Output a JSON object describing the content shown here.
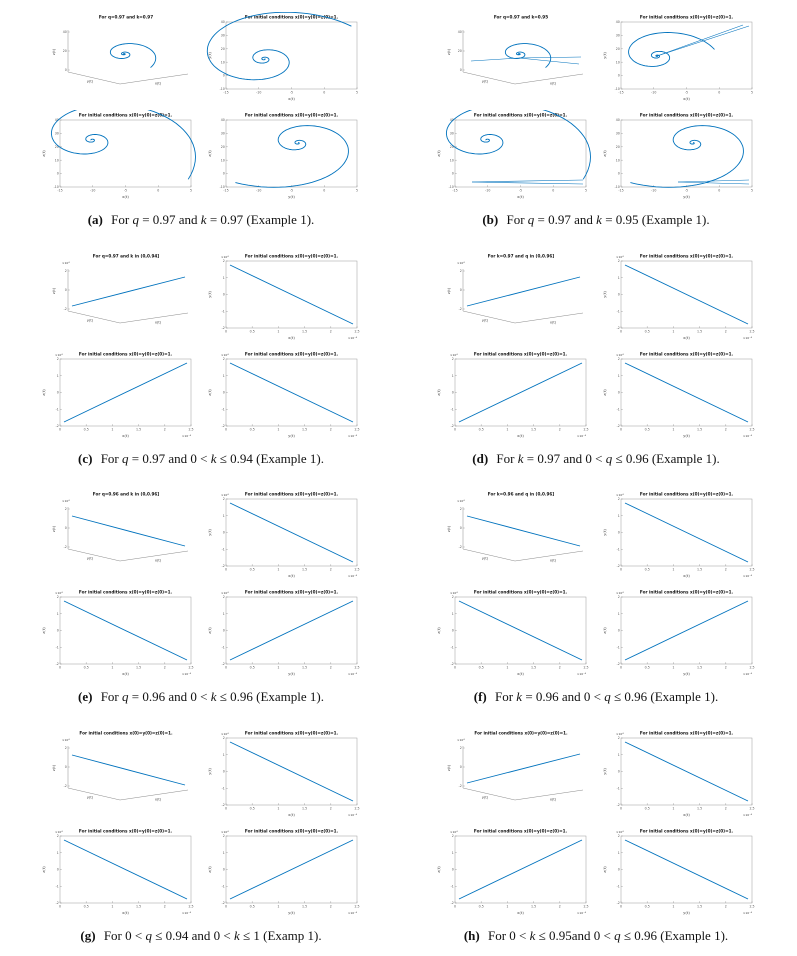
{
  "document": {
    "type": "journal-figure-page",
    "background": "#ffffff"
  },
  "colors": {
    "curve": "#0072BD",
    "axis": "#8a8a8a",
    "box": "#9a9a9a",
    "tick_text": "#555555",
    "label_text": "#444444",
    "title_text": "#111111",
    "caption_text": "#111111"
  },
  "ticks": {
    "spiral_x": [
      "-15",
      "-10",
      "-5",
      "0",
      "5"
    ],
    "spiral_y": [
      "-10",
      "0",
      "10",
      "20",
      "30",
      "40"
    ],
    "line_x": [
      "0",
      "0.5",
      "1",
      "1.5",
      "2",
      "2.5"
    ],
    "line_y": [
      "-2",
      "-1",
      "0",
      "1",
      "2"
    ],
    "spiral3d_z": [
      "0",
      "20",
      "40"
    ],
    "line3d_z": [
      "-2",
      "0",
      "2"
    ]
  },
  "exponents": {
    "x": "×10⁻⁴",
    "y": "×10⁴",
    "z": "×10⁴"
  },
  "figures": [
    {
      "label": "(a)",
      "caption": "For q = 0.97 and k = 0.97 (Example 1).",
      "panels": [
        {
          "title": "For q=0.97 and k=0.97",
          "type": "spiral3d",
          "xlabel": "x(t)",
          "ylabel": "y(t)",
          "zlabel": "z(t)"
        },
        {
          "title": "For initial conditions x(0)=y(0)=z(0)=1.",
          "type": "spiral",
          "tail": "ne",
          "xlabel": "x(t)",
          "ylabel": "y(t)"
        },
        {
          "title": "For initial conditions x(0)=y(0)=z(0)=1.",
          "type": "spiral",
          "tail": "se",
          "xlabel": "x(t)",
          "ylabel": "z(t)"
        },
        {
          "title": "For initial conditions x(0)=y(0)=z(0)=1.",
          "type": "spiral",
          "tail": "sw",
          "xlabel": "y(t)",
          "ylabel": "z(t)"
        }
      ]
    },
    {
      "label": "(b)",
      "caption": "For q = 0.97 and k = 0.95 (Example 1).",
      "panels": [
        {
          "title": "For q=0.97 and k=0.95",
          "type": "spiral3d",
          "whisker": "cross",
          "xlabel": "x(t)",
          "ylabel": "y(t)",
          "zlabel": "z(t)"
        },
        {
          "title": "For initial conditions x(0)=y(0)=z(0)=1.",
          "type": "spiral",
          "tail": "e",
          "whisker": "ne",
          "xlabel": "x(t)",
          "ylabel": "y(t)"
        },
        {
          "title": "For initial conditions x(0)=y(0)=z(0)=1.",
          "type": "spiral",
          "tail": "se",
          "whisker": "flat",
          "xlabel": "x(t)",
          "ylabel": "z(t)"
        },
        {
          "title": "For initial conditions x(0)=y(0)=z(0)=1.",
          "type": "spiral",
          "tail": "sw",
          "whisker": "flat",
          "xlabel": "y(t)",
          "ylabel": "z(t)"
        }
      ]
    },
    {
      "label": "(c)",
      "caption": "For q = 0.97 and 0 < k ≤ 0.94 (Example 1).",
      "panels": [
        {
          "title": "For q=0.97 and k in (0,0.94]",
          "type": "line3d",
          "dir": "up",
          "xlabel": "x(t)",
          "ylabel": "y(t)",
          "zlabel": "z(t)"
        },
        {
          "title": "For initial conditions x(0)=y(0)=z(0)=1.",
          "type": "line",
          "dir": "down",
          "xlabel": "x(t)",
          "ylabel": "y(t)"
        },
        {
          "title": "For initial conditions x(0)=y(0)=z(0)=1.",
          "type": "line",
          "dir": "up",
          "xlabel": "x(t)",
          "ylabel": "z(t)"
        },
        {
          "title": "For initial conditions x(0)=y(0)=z(0)=1.",
          "type": "line",
          "dir": "down",
          "xlabel": "y(t)",
          "ylabel": "z(t)"
        }
      ]
    },
    {
      "label": "(d)",
      "caption": "For k = 0.97 and 0 < q ≤ 0.96 (Example 1).",
      "panels": [
        {
          "title": "For k=0.97 and q in (0,0.96]",
          "type": "line3d",
          "dir": "up",
          "xlabel": "x(t)",
          "ylabel": "y(t)",
          "zlabel": "z(t)"
        },
        {
          "title": "For initial conditions x(0)=y(0)=z(0)=1.",
          "type": "line",
          "dir": "down",
          "xlabel": "x(t)",
          "ylabel": "y(t)"
        },
        {
          "title": "For initial conditions x(0)=y(0)=z(0)=1.",
          "type": "line",
          "dir": "up",
          "xlabel": "x(t)",
          "ylabel": "z(t)"
        },
        {
          "title": "For initial conditions x(0)=y(0)=z(0)=1.",
          "type": "line",
          "dir": "down",
          "xlabel": "y(t)",
          "ylabel": "z(t)"
        }
      ]
    },
    {
      "label": "(e)",
      "caption": "For q = 0.96 and 0 < k ≤ 0.96 (Example 1).",
      "panels": [
        {
          "title": "For q=0.96 and k in (0,0.96]",
          "type": "line3d",
          "dir": "down",
          "xlabel": "x(t)",
          "ylabel": "y(t)",
          "zlabel": "z(t)"
        },
        {
          "title": "For initial conditions x(0)=y(0)=z(0)=1.",
          "type": "line",
          "dir": "down",
          "xlabel": "x(t)",
          "ylabel": "y(t)"
        },
        {
          "title": "For initial conditions x(0)=y(0)=z(0)=1.",
          "type": "line",
          "dir": "down",
          "xlabel": "x(t)",
          "ylabel": "z(t)"
        },
        {
          "title": "For initial conditions x(0)=y(0)=z(0)=1.",
          "type": "line",
          "dir": "up",
          "xlabel": "y(t)",
          "ylabel": "z(t)"
        }
      ]
    },
    {
      "label": "(f)",
      "caption": "For k = 0.96 and 0 < q ≤ 0.96 (Example 1).",
      "panels": [
        {
          "title": "For k=0.96 and q in (0,0.96]",
          "type": "line3d",
          "dir": "down",
          "xlabel": "x(t)",
          "ylabel": "y(t)",
          "zlabel": "z(t)"
        },
        {
          "title": "For initial conditions x(0)=y(0)=z(0)=1.",
          "type": "line",
          "dir": "down",
          "xlabel": "x(t)",
          "ylabel": "y(t)"
        },
        {
          "title": "For initial conditions x(0)=y(0)=z(0)=1.",
          "type": "line",
          "dir": "down",
          "xlabel": "x(t)",
          "ylabel": "z(t)"
        },
        {
          "title": "For initial conditions x(0)=y(0)=z(0)=1.",
          "type": "line",
          "dir": "up",
          "xlabel": "y(t)",
          "ylabel": "z(t)"
        }
      ]
    },
    {
      "label": "(g)",
      "caption": "For 0 < q ≤ 0.94 and 0 < k ≤ 1 (Examp 1).",
      "panels": [
        {
          "title": "For initial conditions x(0)=y(0)=z(0)=1.",
          "type": "line3d",
          "dir": "down",
          "xlabel": "x(t)",
          "ylabel": "y(t)",
          "zlabel": "z(t)"
        },
        {
          "title": "For initial conditions x(0)=y(0)=z(0)=1.",
          "type": "line",
          "dir": "down",
          "xlabel": "x(t)",
          "ylabel": "y(t)"
        },
        {
          "title": "For initial conditions x(0)=y(0)=z(0)=1.",
          "type": "line",
          "dir": "down",
          "xlabel": "x(t)",
          "ylabel": "z(t)"
        },
        {
          "title": "For initial conditions x(0)=y(0)=z(0)=1.",
          "type": "line",
          "dir": "up",
          "xlabel": "y(t)",
          "ylabel": "z(t)"
        }
      ]
    },
    {
      "label": "(h)",
      "caption": "For 0 < k ≤ 0.95and 0 < q ≤ 0.96 (Example 1).",
      "panels": [
        {
          "title": "For initial conditions x(0)=y(0)=z(0)=1.",
          "type": "line3d",
          "dir": "up",
          "xlabel": "x(t)",
          "ylabel": "y(t)",
          "zlabel": "z(t)"
        },
        {
          "title": "For initial conditions x(0)=y(0)=z(0)=1.",
          "type": "line",
          "dir": "down",
          "xlabel": "x(t)",
          "ylabel": "y(t)"
        },
        {
          "title": "For initial conditions x(0)=y(0)=z(0)=1.",
          "type": "line",
          "dir": "up",
          "xlabel": "x(t)",
          "ylabel": "z(t)"
        },
        {
          "title": "For initial conditions x(0)=y(0)=z(0)=1.",
          "type": "line",
          "dir": "down",
          "xlabel": "y(t)",
          "ylabel": "z(t)"
        }
      ]
    }
  ]
}
